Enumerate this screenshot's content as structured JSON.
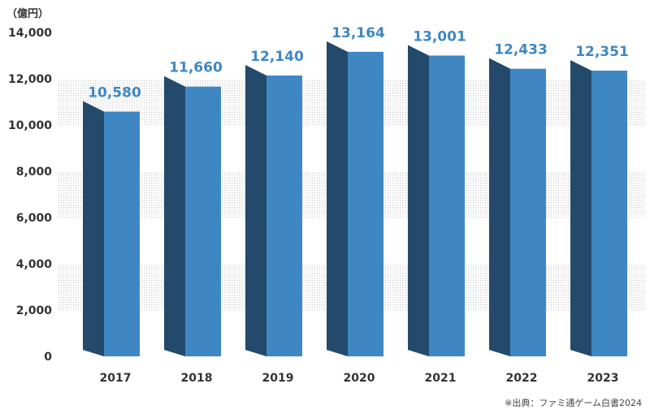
{
  "chart_data": {
    "type": "bar",
    "unit_label": "（億円）",
    "categories": [
      "2017",
      "2018",
      "2019",
      "2020",
      "2021",
      "2022",
      "2023"
    ],
    "values": [
      10580,
      11660,
      12140,
      13164,
      13001,
      12433,
      12351
    ],
    "value_labels": [
      "10,580",
      "11,660",
      "12,140",
      "13,164",
      "13,001",
      "12,433",
      "12,351"
    ],
    "ylim": [
      0,
      14000
    ],
    "y_ticks": [
      0,
      2000,
      4000,
      6000,
      8000,
      10000,
      12000,
      14000
    ],
    "y_tick_labels": [
      "0",
      "2,000",
      "4,000",
      "6,000",
      "8,000",
      "10,000",
      "12,000",
      "14,000"
    ],
    "xlabel": "",
    "ylabel": "",
    "grid": "dotted bands",
    "source": "※出典：ファミ通ゲーム白書2024",
    "colors": {
      "bar_front": "#3f87c3",
      "bar_side": "#234a6a",
      "value_label": "#3f87c3",
      "axis_text": "#333333",
      "grid_dots": "#c8c8c8"
    }
  }
}
